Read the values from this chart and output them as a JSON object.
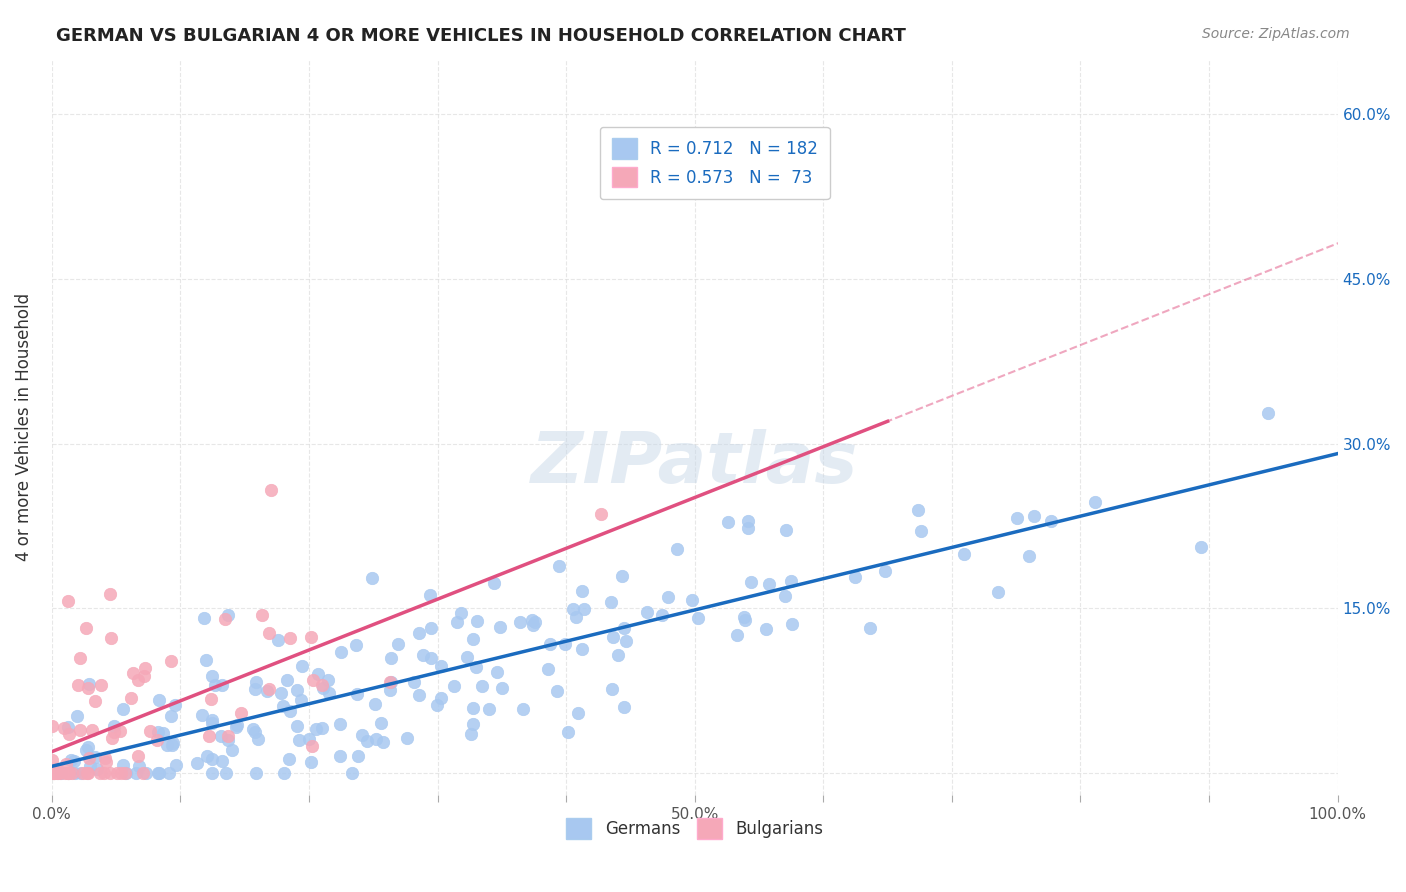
{
  "title": "GERMAN VS BULGARIAN 4 OR MORE VEHICLES IN HOUSEHOLD CORRELATION CHART",
  "source": "Source: ZipAtlas.com",
  "ylabel": "4 or more Vehicles in Household",
  "xlabel": "",
  "xlim": [
    0.0,
    1.0
  ],
  "ylim": [
    -0.02,
    0.65
  ],
  "xticks": [
    0.0,
    0.1,
    0.2,
    0.3,
    0.4,
    0.5,
    0.6,
    0.7,
    0.8,
    0.9,
    1.0
  ],
  "yticks": [
    0.0,
    0.15,
    0.3,
    0.45,
    0.6
  ],
  "ytick_labels": [
    "",
    "15.0%",
    "30.0%",
    "45.0%",
    "60.0%"
  ],
  "xtick_labels": [
    "0.0%",
    "",
    "",
    "",
    "",
    "50.0%",
    "",
    "",
    "",
    "",
    "100.0%"
  ],
  "german_color": "#a8c8f0",
  "bulgarian_color": "#f5a8b8",
  "german_line_color": "#1a6bbf",
  "bulgarian_line_color": "#e05080",
  "legend_text_color": "#1a6bbf",
  "watermark": "ZIPatlas",
  "R_german": 0.712,
  "N_german": 182,
  "R_bulgarian": 0.573,
  "N_bulgarian": 73,
  "german_seed": 42,
  "bulgarian_seed": 7,
  "background_color": "#ffffff",
  "grid_color": "#dddddd"
}
